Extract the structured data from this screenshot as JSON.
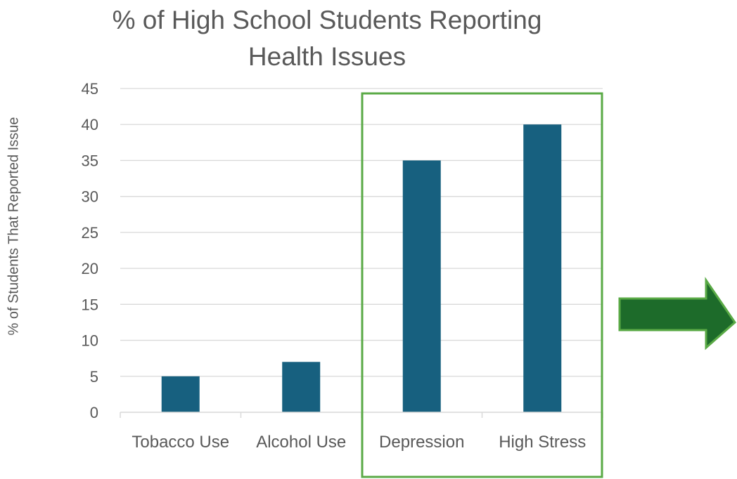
{
  "chart_data": {
    "type": "bar",
    "title": "% of High School Students Reporting Health Issues",
    "title_lines": [
      "% of High School Students Reporting",
      "Health Issues"
    ],
    "xlabel": "",
    "ylabel": "% of Students That Reported Issue",
    "categories": [
      "Tobacco Use",
      "Alcohol Use",
      "Depression",
      "High Stress"
    ],
    "values": [
      5,
      7,
      35,
      40
    ],
    "ylim": [
      0,
      45
    ],
    "yticks": [
      "0",
      "5",
      "10",
      "15",
      "20",
      "25",
      "30",
      "35",
      "40",
      "45"
    ],
    "grid": true,
    "legend": "none",
    "highlighted_categories": [
      "Depression",
      "High Stress"
    ],
    "annotation": "green-right-arrow"
  },
  "colors": {
    "bar": "#17607f",
    "grid": "#d9d9d9",
    "text": "#595959",
    "highlight_box": "#5aaa46",
    "arrow_fill": "#1d6b2a",
    "arrow_stroke": "#5aaa46"
  }
}
